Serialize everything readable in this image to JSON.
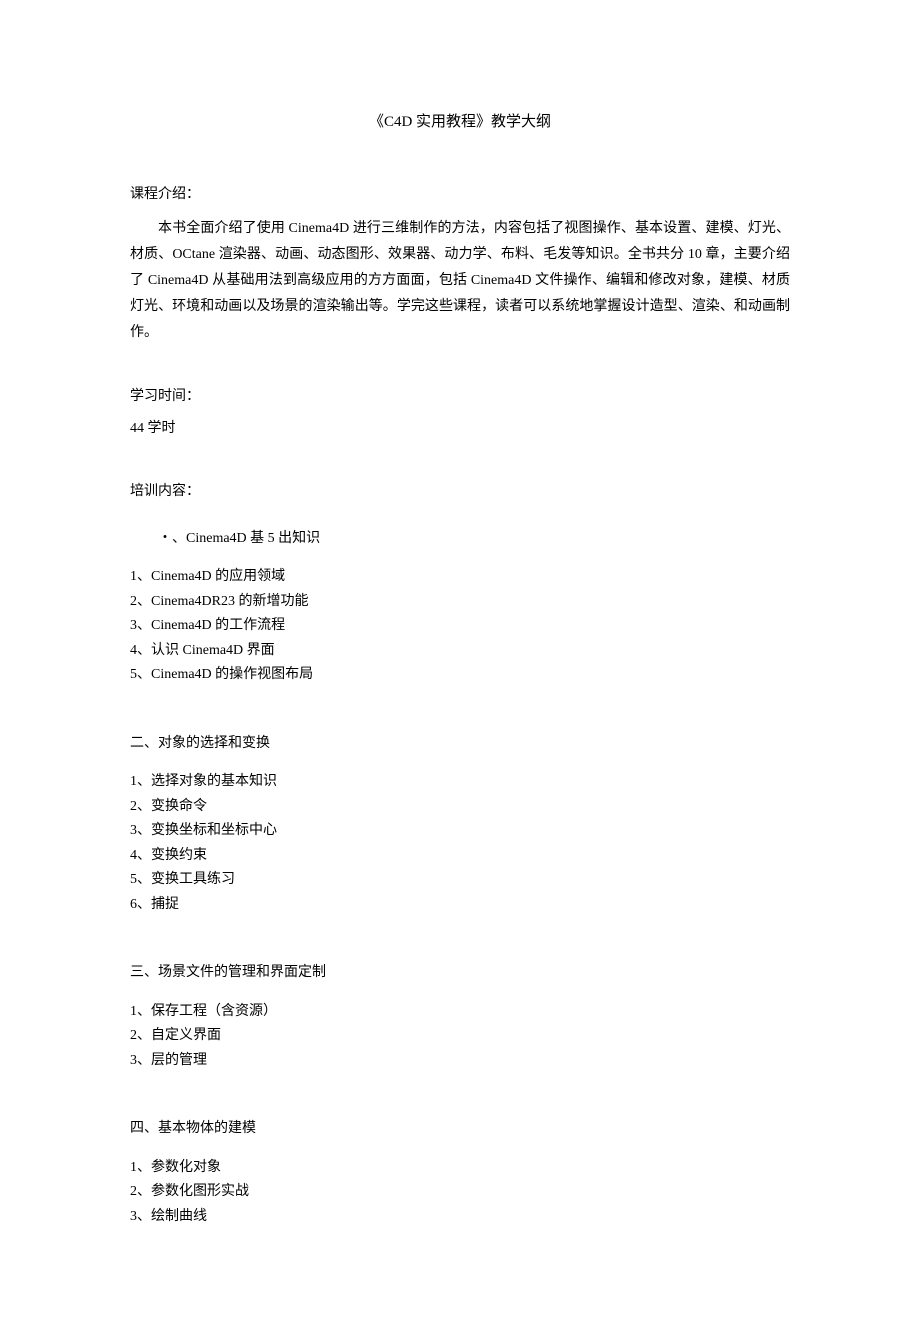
{
  "title": "《C4D 实用教程》教学大纲",
  "course_intro_label": "课程介绍：",
  "course_intro_text": "本书全面介绍了使用 Cinema4D 进行三维制作的方法，内容包括了视图操作、基本设置、建模、灯光、材质、OCtane 渲染器、动画、动态图形、效果器、动力学、布料、毛发等知识。全书共分 10 章，主要介绍了 Cinema4D 从基础用法到高级应用的方方面面，包括 Cinema4D 文件操作、编辑和修改对象，建模、材质灯光、环境和动画以及场景的渲染输出等。学完这些课程，读者可以系统地掌握设计造型、渲染、和动画制作。",
  "study_time_label": "学习时间：",
  "study_time_value": "44 学时",
  "content_label": "培训内容：",
  "chapters": [
    {
      "title": "・、Cinema4D 基 5 出知识",
      "indented": true,
      "items": [
        "1、Cinema4D 的应用领域",
        "2、Cinema4DR23 的新增功能",
        "3、Cinema4D 的工作流程",
        "4、认识 Cinema4D 界面",
        "5、Cinema4D 的操作视图布局"
      ]
    },
    {
      "title": "二、对象的选择和变换",
      "indented": false,
      "items": [
        "1、选择对象的基本知识",
        "2、变换命令",
        "3、变换坐标和坐标中心",
        "4、变换约束",
        "5、变换工具练习",
        "6、捕捉"
      ]
    },
    {
      "title": "三、场景文件的管理和界面定制",
      "indented": false,
      "items": [
        "1、保存工程（含资源）",
        "2、自定义界面",
        "3、层的管理"
      ]
    },
    {
      "title": "四、基本物体的建模",
      "indented": false,
      "items": [
        "1、参数化对象",
        "2、参数化图形实战",
        "3、绘制曲线"
      ]
    }
  ]
}
